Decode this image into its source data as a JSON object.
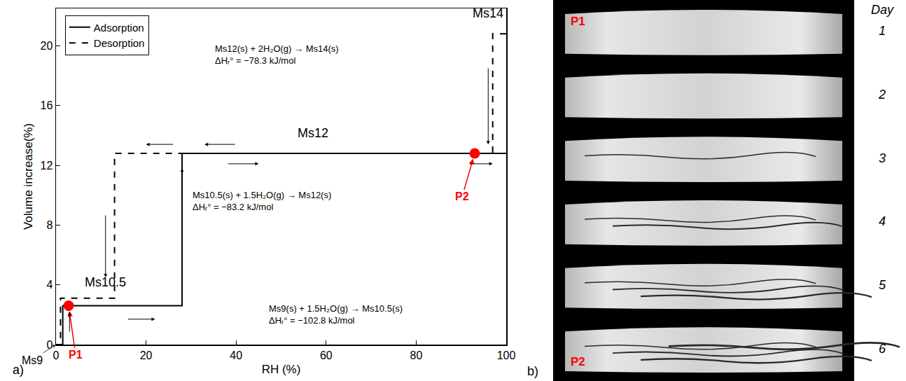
{
  "chart_data": {
    "type": "line",
    "panel_label": "a)",
    "x_label": "RH (%)",
    "y_label": "Volume increase(%)",
    "xlim": [
      0,
      100
    ],
    "xticks": [
      0,
      20,
      40,
      60,
      80,
      100
    ],
    "ylim": [
      0,
      22.5
    ],
    "yticks": [
      0,
      4,
      8,
      12,
      16,
      20
    ],
    "legend": "top left",
    "series": [
      {
        "name": "Adsorption",
        "color": "#000000",
        "line_style": "solid",
        "x": [
          0,
          1.5,
          1.5,
          28,
          28,
          100
        ],
        "values": [
          0,
          0,
          2.6,
          2.6,
          12.8,
          12.8
        ]
      },
      {
        "name": "Desorption",
        "color": "#000000",
        "line_style": "dash",
        "x": [
          100,
          97,
          97,
          13,
          13,
          1,
          1,
          0
        ],
        "values": [
          20.8,
          20.8,
          12.8,
          12.8,
          3.1,
          3.1,
          0,
          0
        ]
      }
    ],
    "points": [
      {
        "label": "P1",
        "x": 2.8,
        "y": 2.6,
        "color": "#ff0000"
      },
      {
        "label": "P2",
        "x": 93,
        "y": 12.8,
        "color": "#ff0000"
      }
    ],
    "phase_labels": [
      {
        "text": "Ms14",
        "x": 96,
        "y": 21.6
      },
      {
        "text": "Ms12",
        "x": 57,
        "y": 13.6
      },
      {
        "text": "Ms10.5",
        "x": 11,
        "y": 3.6
      },
      {
        "text": "Ms9",
        "x": 0,
        "y": 0
      }
    ],
    "reactions": [
      {
        "equation": "Ms12(s) + 2H₂O(g) → Ms14(s)",
        "enthalpy": "ΔHᵣ° = −78.3 kJ/mol",
        "x": 35,
        "y": 19.4
      },
      {
        "equation": "Ms10.5(s) + 1.5H₂O(g) → Ms12(s)",
        "enthalpy": "ΔHᵣ° = −83.2 kJ/mol",
        "x": 30,
        "y": 9.6
      },
      {
        "equation": "Ms9(s) + 1.5H₂O(g) → Ms10.5(s)",
        "enthalpy": "ΔHᵣ° = −102.8 kJ/mol",
        "x": 47,
        "y": 2.0
      }
    ]
  },
  "panel_b": {
    "label": "b)",
    "column_title": "Day",
    "rows": [
      "1",
      "2",
      "3",
      "4",
      "5",
      "6"
    ],
    "markers": [
      {
        "row": 0,
        "label": "P1"
      },
      {
        "row": 5,
        "label": "P2"
      }
    ]
  }
}
